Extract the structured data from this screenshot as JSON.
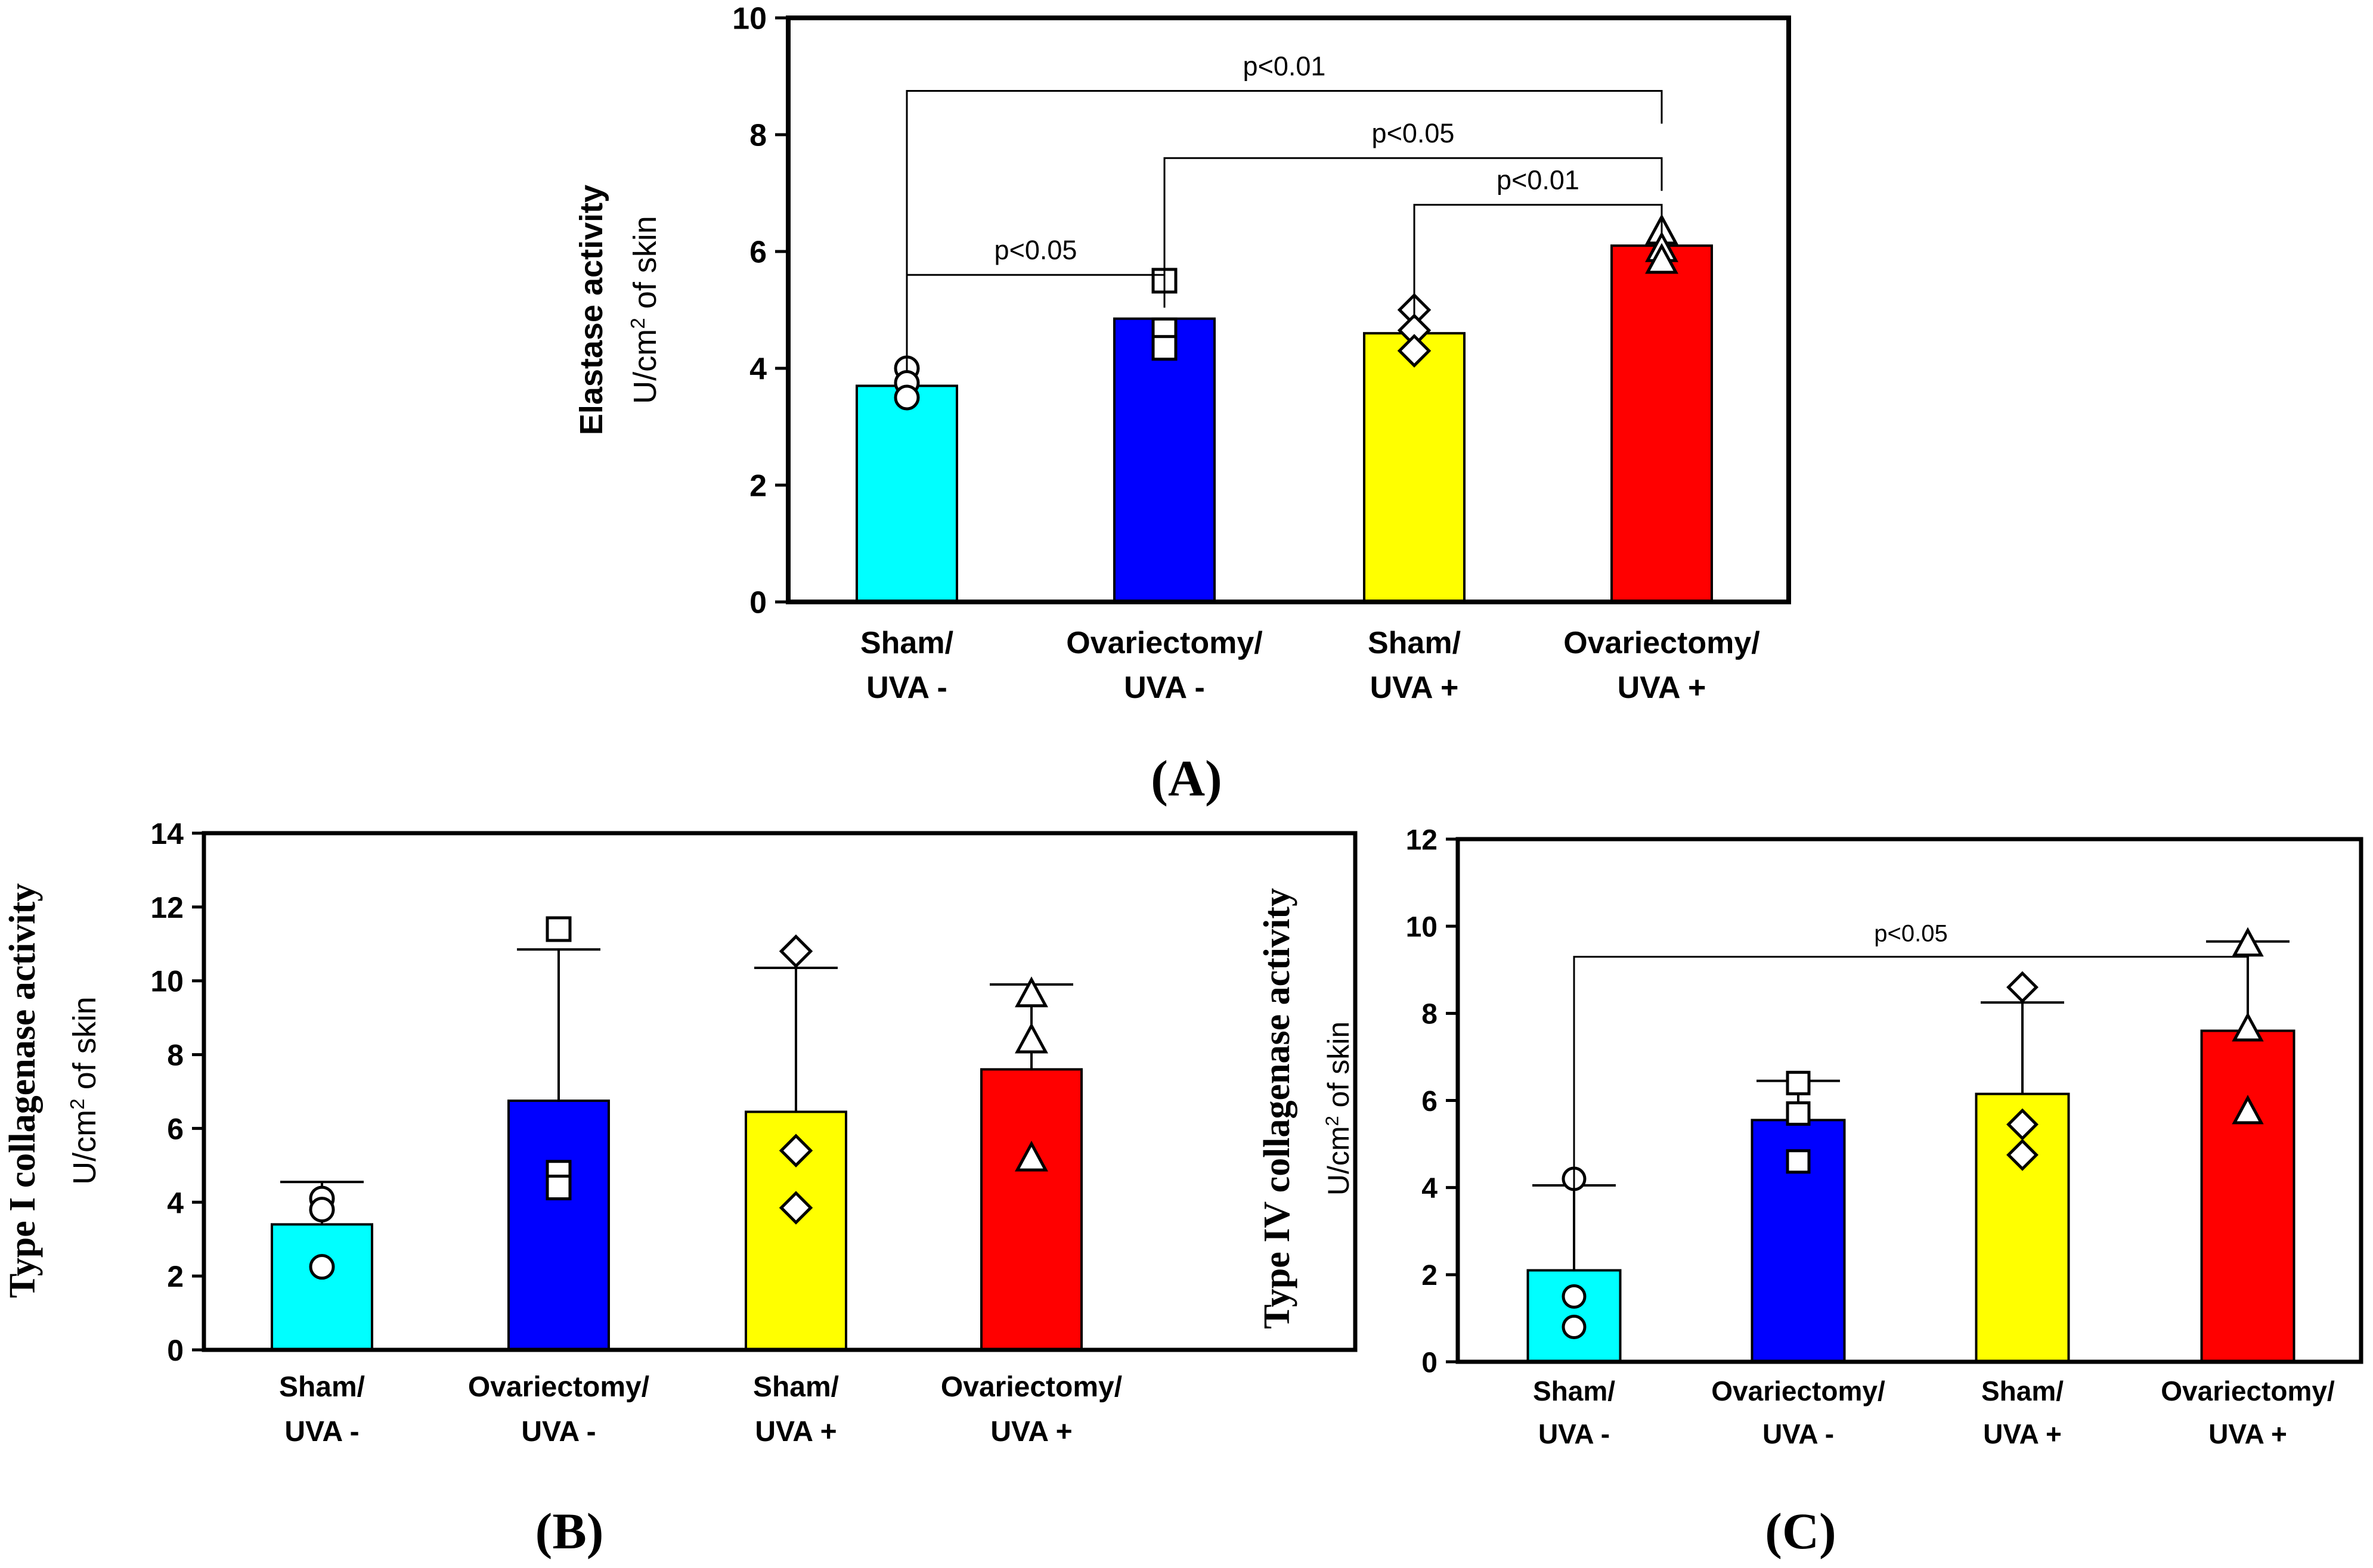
{
  "colors": {
    "sham_uva_minus": "#00FFFF",
    "ovx_uva_minus": "#0000FF",
    "sham_uva_plus": "#FFFF00",
    "ovx_uva_plus": "#FF0000",
    "axis": "#000000"
  },
  "chart_data": [
    {
      "id": "A",
      "type": "bar",
      "panel_label": "A",
      "ylabel_bold": "Elastase activity",
      "ylabel_unit_pre": "U/cm",
      "ylabel_unit_sup": "2",
      "ylabel_unit_post": " of skin",
      "ylim": [
        0,
        10
      ],
      "yticks": [
        "0",
        "2",
        "4",
        "6",
        "8",
        "10"
      ],
      "categories": [
        {
          "line1": "Sham/",
          "line2": "UVA  -"
        },
        {
          "line1": "Ovariectomy/",
          "line2": "UVA  -"
        },
        {
          "line1": "Sham/",
          "line2": "UVA  +"
        },
        {
          "line1": "Ovariectomy/",
          "line2": "UVA  +"
        }
      ],
      "values": [
        3.7,
        4.85,
        4.6,
        6.1
      ],
      "errors": [
        null,
        null,
        null,
        null
      ],
      "markers": [
        "circle",
        "square",
        "diamond",
        "triangle"
      ],
      "points": [
        [
          4.0,
          3.75,
          3.5
        ],
        [
          5.5,
          4.65,
          4.35
        ],
        [
          5.0,
          4.65,
          4.3
        ],
        [
          6.35,
          6.05,
          5.85
        ]
      ],
      "significance": [
        {
          "from": 0,
          "to": 1,
          "level": 5.6,
          "label": "p<0.05"
        },
        {
          "from": 2,
          "to": 3,
          "level": 6.8,
          "label": "p<0.01"
        },
        {
          "from": 1,
          "to": 3,
          "level": 7.6,
          "label": "p<0.05"
        },
        {
          "from": 0,
          "to": 3,
          "level": 8.75,
          "label": "p<0.01"
        }
      ]
    },
    {
      "id": "B",
      "type": "bar",
      "panel_label": "B",
      "ylabel_bold": "Type I collagenase  activity",
      "ylabel_unit_pre": "U/cm",
      "ylabel_unit_sup": "2",
      "ylabel_unit_post": " of skin",
      "ylim": [
        0,
        14
      ],
      "yticks": [
        "0",
        "2",
        "4",
        "6",
        "8",
        "10",
        "12",
        "14"
      ],
      "categories": [
        {
          "line1": "Sham/",
          "line2": "UVA  -"
        },
        {
          "line1": "Ovariectomy/",
          "line2": "UVA  -"
        },
        {
          "line1": "Sham/",
          "line2": "UVA  +"
        },
        {
          "line1": "Ovariectomy/",
          "line2": "UVA  +"
        }
      ],
      "values": [
        3.4,
        6.75,
        6.45,
        7.6
      ],
      "errors": [
        1.15,
        4.1,
        3.9,
        2.3
      ],
      "markers": [
        "circle",
        "square",
        "diamond",
        "triangle"
      ],
      "points": [
        [
          4.1,
          3.8,
          2.25
        ],
        [
          11.4,
          4.8,
          4.4
        ],
        [
          10.8,
          5.4,
          3.85
        ],
        [
          9.65,
          8.4,
          5.2
        ]
      ],
      "significance": []
    },
    {
      "id": "C",
      "type": "bar",
      "panel_label": "C",
      "ylabel_bold": "Type IV collagenase  activity",
      "ylabel_unit_pre": "U/cm",
      "ylabel_unit_sup": "2",
      "ylabel_unit_post": " of skin",
      "ylim": [
        0,
        12
      ],
      "yticks": [
        "0",
        "2",
        "4",
        "6",
        "8",
        "10",
        "12"
      ],
      "categories": [
        {
          "line1": "Sham/",
          "line2": "UVA  -"
        },
        {
          "line1": "Ovariectomy/",
          "line2": "UVA  -"
        },
        {
          "line1": "Sham/",
          "line2": "UVA +"
        },
        {
          "line1": "Ovariectomy/",
          "line2": "UVA  +"
        }
      ],
      "values": [
        2.1,
        5.55,
        6.15,
        7.6
      ],
      "errors": [
        1.95,
        0.9,
        2.1,
        2.05
      ],
      "markers": [
        "circle",
        "square",
        "diamond",
        "triangle"
      ],
      "points": [
        [
          4.2,
          1.5,
          0.8
        ],
        [
          6.4,
          5.7,
          4.6
        ],
        [
          8.6,
          5.45,
          4.75
        ],
        [
          9.6,
          7.65,
          5.75
        ]
      ],
      "significance": [
        {
          "from": 0,
          "to": 3,
          "level": 9.3,
          "label": "p<0.05"
        }
      ]
    }
  ]
}
